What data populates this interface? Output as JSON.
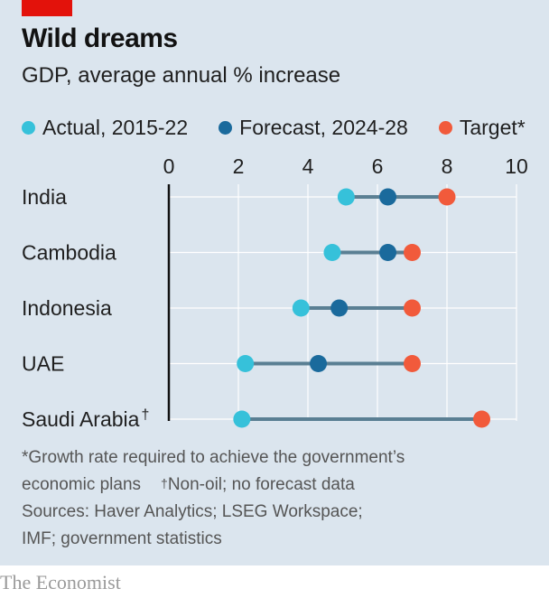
{
  "title": "Wild dreams",
  "subtitle": "GDP, average annual % increase",
  "legend": [
    {
      "bold": "Actual",
      "rest": ", 2015-22",
      "color": "#36c1da"
    },
    {
      "bold": "Forecast",
      "rest": ", 2024-28",
      "color": "#1a6a9c"
    },
    {
      "bold": "Target",
      "rest": "*",
      "color": "#f15a3b"
    }
  ],
  "colors": {
    "actual": "#36c1da",
    "forecast": "#1a6a9c",
    "target": "#f15a3b",
    "connector": "#5a7f93",
    "gridline": "#ffffff",
    "axis": "#121212"
  },
  "chart_data": {
    "type": "dot_range",
    "x_ticks": [
      0,
      2,
      4,
      6,
      8,
      10
    ],
    "xlim": [
      0,
      10
    ],
    "grid": true,
    "legend_position": "top",
    "categories": [
      "India",
      "Cambodia",
      "Indonesia",
      "UAE",
      "Saudi Arabia"
    ],
    "category_marks": [
      "",
      "",
      "",
      "",
      "†"
    ],
    "series": [
      {
        "name": "Actual, 2015-22",
        "values": [
          5.1,
          4.7,
          3.8,
          2.2,
          2.1
        ]
      },
      {
        "name": "Forecast, 2024-28",
        "values": [
          6.3,
          6.3,
          4.9,
          4.3,
          null
        ]
      },
      {
        "name": "Target*",
        "values": [
          8.0,
          7.0,
          7.0,
          7.0,
          9.0
        ]
      }
    ]
  },
  "footnotes": {
    "line1": "*Growth rate required to achieve the government’s",
    "line2_a": "economic plans",
    "line2_mark": "†",
    "line2_b": "Non-oil; no forecast data",
    "line3": "Sources: Haver Analytics; LSEG Workspace;",
    "line4": "IMF; government statistics"
  },
  "brand": "The Economist"
}
